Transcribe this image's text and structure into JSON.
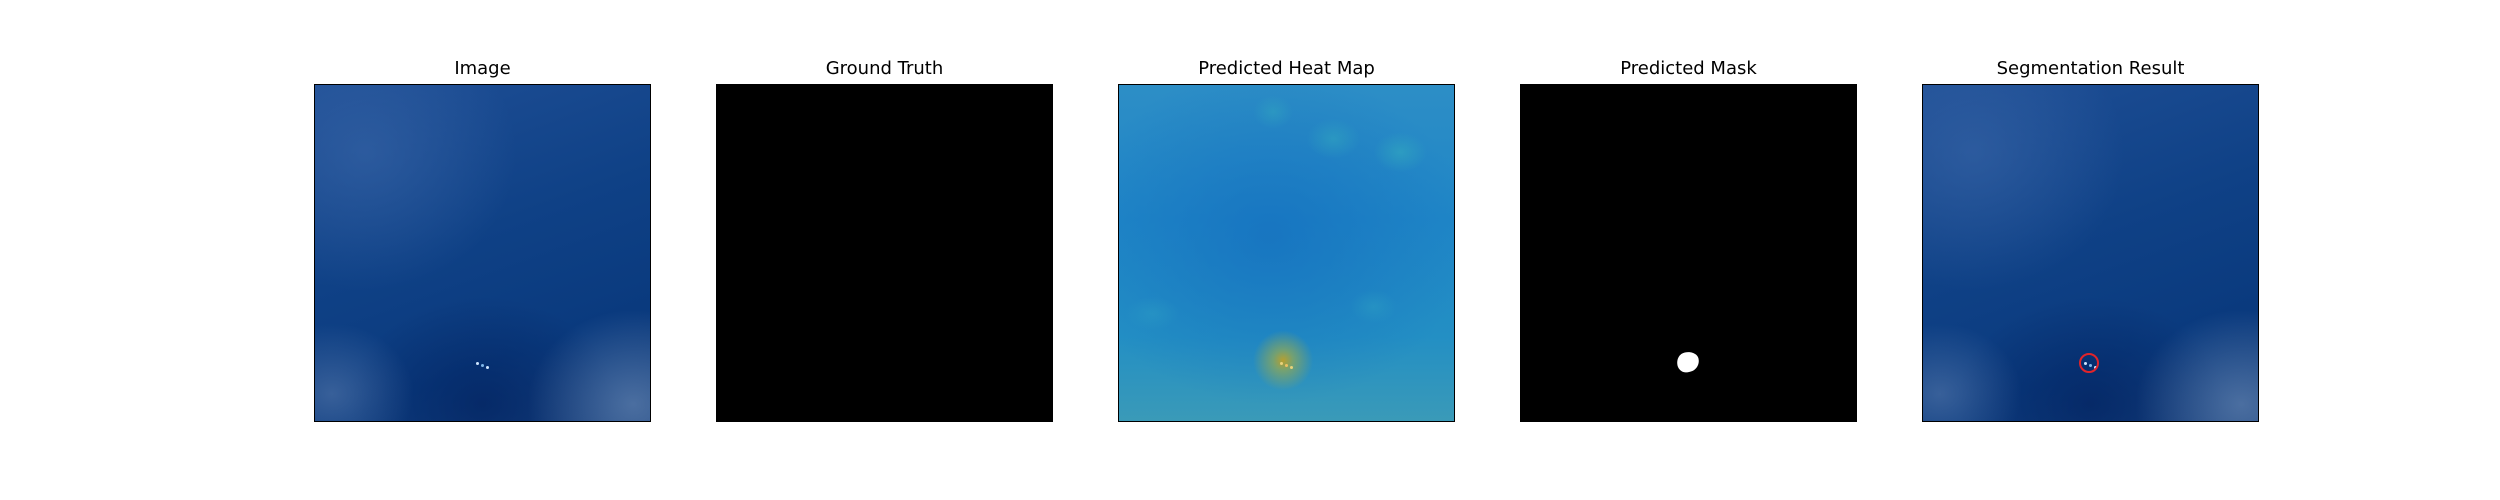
{
  "figure": {
    "panels": [
      {
        "id": "image",
        "title": "Image",
        "content": "ocean-photo"
      },
      {
        "id": "ground-truth",
        "title": "Ground Truth",
        "content": "black-mask"
      },
      {
        "id": "heat-map",
        "title": "Predicted Heat Map",
        "content": "heat-map"
      },
      {
        "id": "pred-mask",
        "title": "Predicted Mask",
        "content": "binary-mask"
      },
      {
        "id": "segmentation",
        "title": "Segmentation Result",
        "content": "ocean-photo-with-circle"
      }
    ]
  },
  "colors": {
    "ocean": "#0f4186",
    "mask_background": "#000000",
    "mask_foreground": "#ffffff",
    "heat_base": "#1f86c7",
    "heat_peak": "#bea028",
    "highlight_circle": "#e0242a"
  }
}
